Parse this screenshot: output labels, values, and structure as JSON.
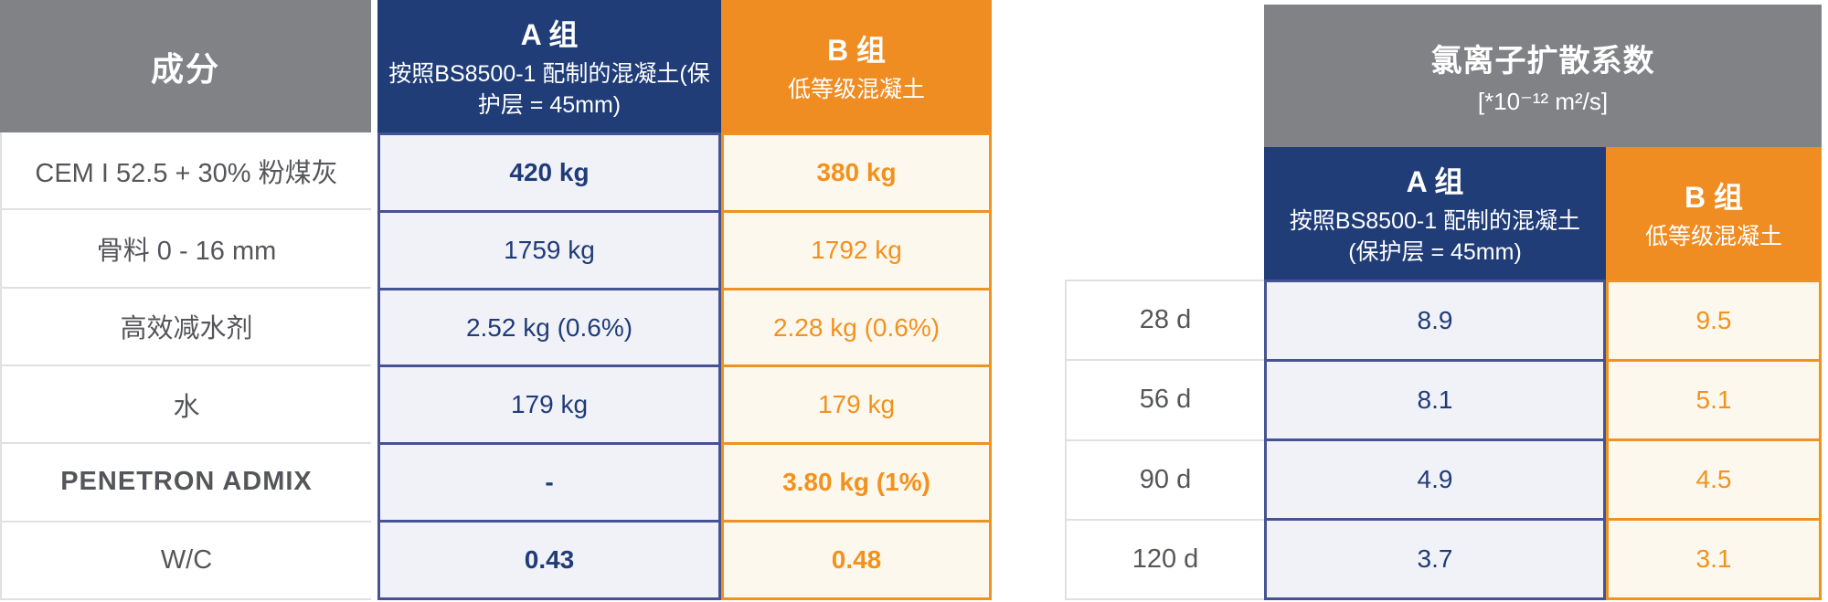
{
  "colors": {
    "navy": "#203d78",
    "orange": "#ef8c22",
    "header_gray": "#808285",
    "cell_a_background": "#f1f1f8",
    "cell_b_background": "#fdf8ee",
    "cell_a_border": "#465393",
    "cell_b_border": "#f0921f",
    "label_text": "#55565a"
  },
  "left_table": {
    "header": {
      "composition": "成分",
      "group_a_title": "A 组",
      "group_a_subtitle": "按照BS8500-1 配制的混凝土(保护层 = 45mm)",
      "group_b_title": "B 组",
      "group_b_subtitle": "低等级混凝土"
    },
    "rows": [
      {
        "label": "CEM I 52.5 + 30% 粉煤灰",
        "a": "420 kg",
        "b": "380 kg"
      },
      {
        "label": "骨料 0 - 16 mm",
        "a": "1759 kg",
        "b": "1792 kg"
      },
      {
        "label": "高效减水剂",
        "a": "2.52 kg (0.6%)",
        "b": "2.28 kg (0.6%)"
      },
      {
        "label": "水",
        "a": "179 kg",
        "b": "179 kg"
      },
      {
        "label": "PENETRON ADMIX",
        "a": "-",
        "b": "3.80 kg (1%)"
      },
      {
        "label": "W/C",
        "a": "0.43",
        "b": "0.48"
      }
    ]
  },
  "right_table": {
    "title": "氯离子扩散系数",
    "unit": "[*10⁻¹² m²/s]",
    "group_a_title": "A 组",
    "group_a_subtitle": "按照BS8500-1 配制的混凝土(保护层 = 45mm)",
    "group_b_title": "B 组",
    "group_b_subtitle": "低等级混凝土",
    "rows": [
      {
        "label": "28 d",
        "a": "8.9",
        "b": "9.5"
      },
      {
        "label": "56 d",
        "a": "8.1",
        "b": "5.1"
      },
      {
        "label": "90 d",
        "a": "4.9",
        "b": "4.5"
      },
      {
        "label": "120 d",
        "a": "3.7",
        "b": "3.1"
      }
    ]
  }
}
